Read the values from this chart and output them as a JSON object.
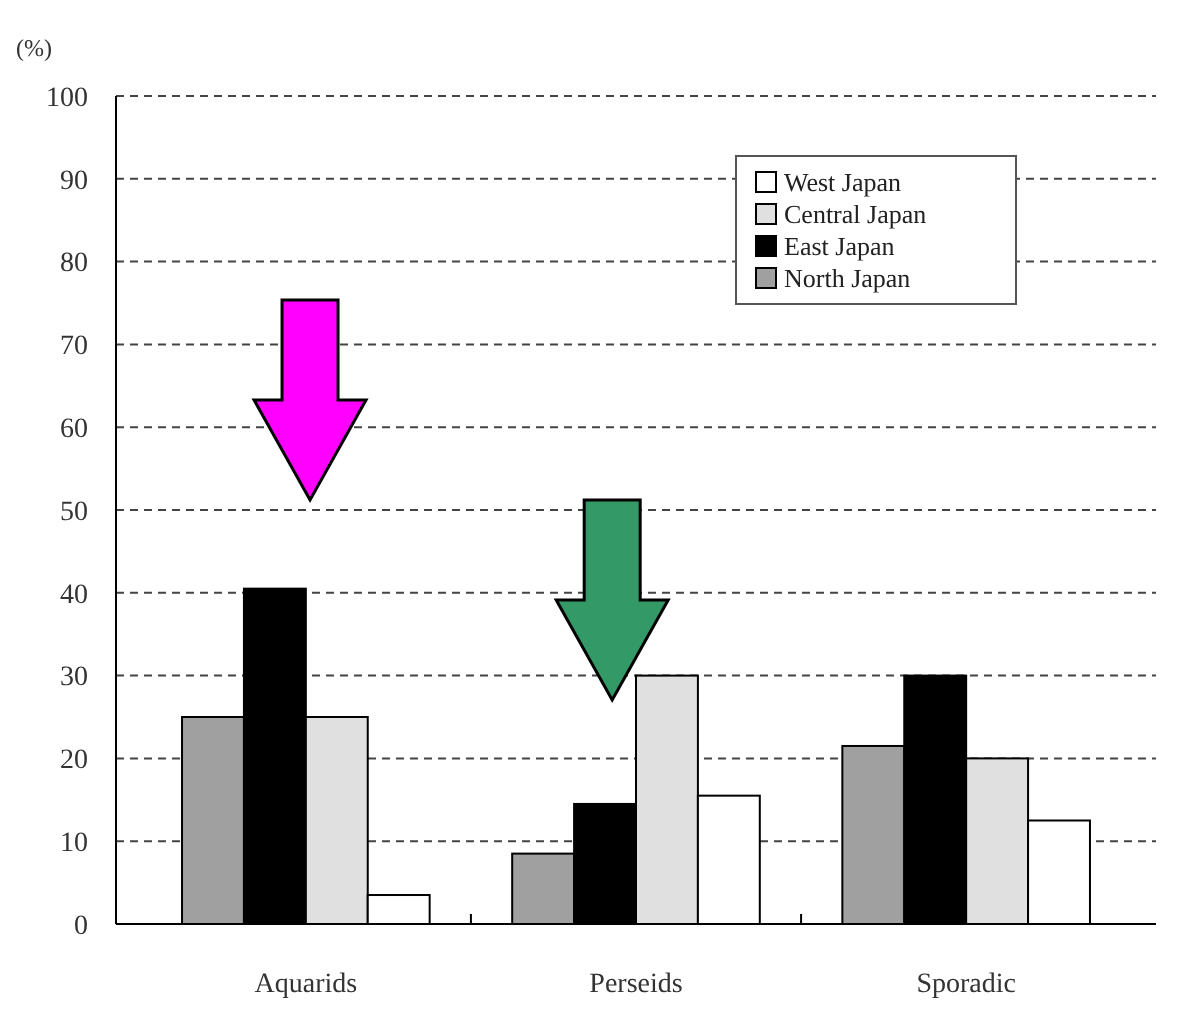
{
  "chart_data": {
    "type": "bar",
    "ylabel": "(%)",
    "categories": [
      "Aquarids",
      "Perseids",
      "Sporadic"
    ],
    "series": [
      {
        "name": "North Japan",
        "color": "#a0a0a0",
        "values": [
          25,
          8.5,
          21.5
        ]
      },
      {
        "name": "East Japan",
        "color": "#000000",
        "values": [
          40.5,
          14.5,
          30
        ]
      },
      {
        "name": "Central Japan",
        "color": "#e0e0e0",
        "values": [
          25,
          30,
          20
        ]
      },
      {
        "name": "West Japan",
        "color": "#ffffff",
        "values": [
          3.5,
          15.5,
          12.5
        ]
      }
    ],
    "ylim": [
      0,
      100
    ],
    "yticks": [
      0,
      10,
      20,
      30,
      40,
      50,
      60,
      70,
      80,
      90,
      100
    ],
    "grid": "y",
    "legend": "top right"
  }
}
